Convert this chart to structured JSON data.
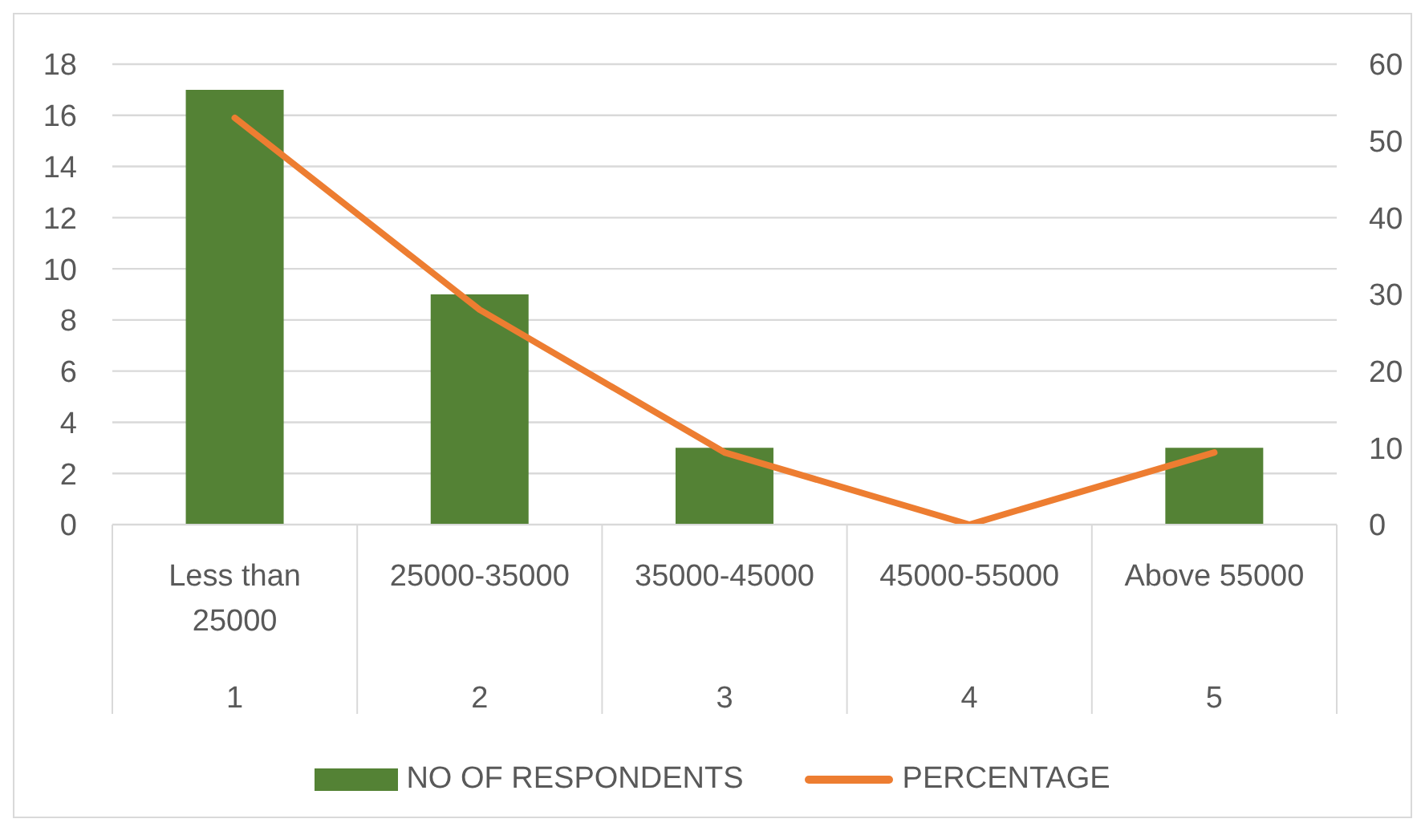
{
  "chart_data": {
    "type": "bar",
    "categories": [
      "Less than 25000",
      "25000-35000",
      "35000-45000",
      "45000-55000",
      "Above 55000"
    ],
    "series": [
      {
        "name": "NO OF RESPONDENTS",
        "color": "#548235",
        "values": [
          17,
          9,
          3,
          0,
          3
        ]
      },
      {
        "name": "PERCENTAGE",
        "type": "line",
        "axis": "y2",
        "color": "#ed7d31",
        "values": [
          53,
          28,
          9.4,
          0,
          9.4
        ]
      }
    ],
    "ylim": [
      0,
      18
    ],
    "yticks": [
      0,
      2,
      4,
      6,
      8,
      10,
      12,
      14,
      16,
      18
    ],
    "y2lim": [
      0,
      60
    ],
    "y2ticks": [
      0,
      10,
      20,
      30,
      40,
      50,
      60
    ],
    "grid": "y",
    "legend": "bottom",
    "marker": "none",
    "annotations": [
      "1",
      "2",
      "3",
      "4",
      "5"
    ]
  }
}
